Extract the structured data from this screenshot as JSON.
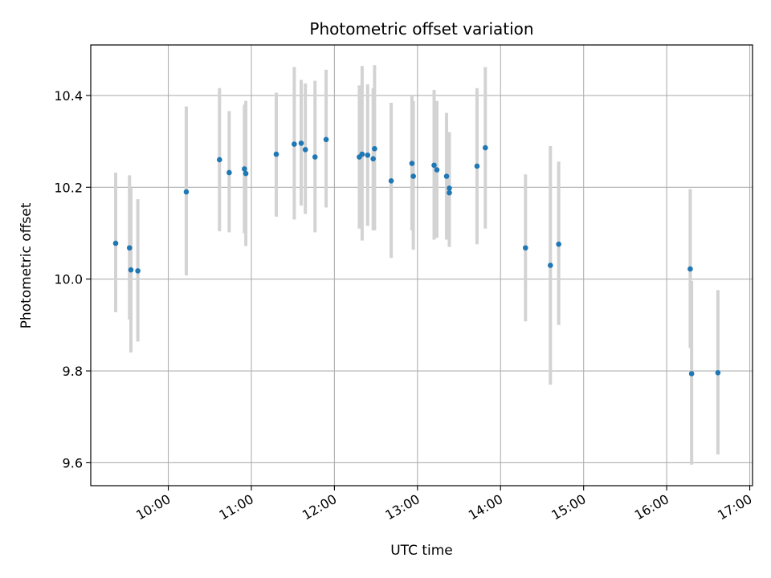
{
  "chart_data": {
    "type": "scatter",
    "title": "Photometric offset variation",
    "xlabel": "UTC time",
    "ylabel": "Photometric offset",
    "x_ticks": [
      "10:00",
      "11:00",
      "12:00",
      "13:00",
      "14:00",
      "15:00",
      "16:00",
      "17:00"
    ],
    "y_ticks": [
      "9.6",
      "9.8",
      "10.0",
      "10.2",
      "10.4"
    ],
    "xlim": [
      "09:04",
      "17:02"
    ],
    "ylim": [
      9.55,
      10.51
    ],
    "grid": true,
    "colors": {
      "point": "#1f77b4",
      "errorbar": "#d3d3d3",
      "grid": "#b0b0b0"
    },
    "points": [
      {
        "x": "09:22",
        "y": 10.078,
        "err_low": 9.928,
        "err_high": 10.232
      },
      {
        "x": "09:32",
        "y": 10.068,
        "err_low": 9.912,
        "err_high": 10.226
      },
      {
        "x": "09:33",
        "y": 10.02,
        "err_low": 9.84,
        "err_high": 10.198
      },
      {
        "x": "09:38",
        "y": 10.018,
        "err_low": 9.864,
        "err_high": 10.174
      },
      {
        "x": "10:13",
        "y": 10.19,
        "err_low": 10.008,
        "err_high": 10.376
      },
      {
        "x": "10:37",
        "y": 10.26,
        "err_low": 10.104,
        "err_high": 10.416
      },
      {
        "x": "10:44",
        "y": 10.232,
        "err_low": 10.102,
        "err_high": 10.366
      },
      {
        "x": "10:55",
        "y": 10.24,
        "err_low": 10.1,
        "err_high": 10.38
      },
      {
        "x": "10:56",
        "y": 10.23,
        "err_low": 10.072,
        "err_high": 10.388
      },
      {
        "x": "11:18",
        "y": 10.272,
        "err_low": 10.136,
        "err_high": 10.406
      },
      {
        "x": "11:31",
        "y": 10.294,
        "err_low": 10.13,
        "err_high": 10.462
      },
      {
        "x": "11:36",
        "y": 10.296,
        "err_low": 10.16,
        "err_high": 10.434
      },
      {
        "x": "11:39",
        "y": 10.282,
        "err_low": 10.142,
        "err_high": 10.426
      },
      {
        "x": "11:46",
        "y": 10.266,
        "err_low": 10.102,
        "err_high": 10.432
      },
      {
        "x": "11:54",
        "y": 10.304,
        "err_low": 10.156,
        "err_high": 10.456
      },
      {
        "x": "12:18",
        "y": 10.266,
        "err_low": 10.11,
        "err_high": 10.422
      },
      {
        "x": "12:20",
        "y": 10.272,
        "err_low": 10.084,
        "err_high": 10.464
      },
      {
        "x": "12:24",
        "y": 10.27,
        "err_low": 10.116,
        "err_high": 10.424
      },
      {
        "x": "12:28",
        "y": 10.262,
        "err_low": 10.106,
        "err_high": 10.416
      },
      {
        "x": "12:29",
        "y": 10.284,
        "err_low": 10.106,
        "err_high": 10.466
      },
      {
        "x": "12:41",
        "y": 10.214,
        "err_low": 10.046,
        "err_high": 10.384
      },
      {
        "x": "12:56",
        "y": 10.252,
        "err_low": 10.106,
        "err_high": 10.398
      },
      {
        "x": "12:57",
        "y": 10.224,
        "err_low": 10.064,
        "err_high": 10.388
      },
      {
        "x": "13:12",
        "y": 10.248,
        "err_low": 10.086,
        "err_high": 10.412
      },
      {
        "x": "13:14",
        "y": 10.238,
        "err_low": 10.09,
        "err_high": 10.388
      },
      {
        "x": "13:21",
        "y": 10.224,
        "err_low": 10.086,
        "err_high": 10.362
      },
      {
        "x": "13:23",
        "y": 10.198,
        "err_low": 10.08,
        "err_high": 10.32
      },
      {
        "x": "13:23",
        "y": 10.188,
        "err_low": 10.07,
        "err_high": 10.306
      },
      {
        "x": "13:43",
        "y": 10.246,
        "err_low": 10.076,
        "err_high": 10.416
      },
      {
        "x": "13:49",
        "y": 10.286,
        "err_low": 10.11,
        "err_high": 10.462
      },
      {
        "x": "14:18",
        "y": 10.068,
        "err_low": 9.908,
        "err_high": 10.228
      },
      {
        "x": "14:36",
        "y": 10.03,
        "err_low": 9.77,
        "err_high": 10.29
      },
      {
        "x": "14:42",
        "y": 10.076,
        "err_low": 9.9,
        "err_high": 10.256
      },
      {
        "x": "16:17",
        "y": 10.022,
        "err_low": 9.85,
        "err_high": 10.196
      },
      {
        "x": "16:18",
        "y": 9.794,
        "err_low": 9.596,
        "err_high": 9.996
      },
      {
        "x": "16:37",
        "y": 9.796,
        "err_low": 9.618,
        "err_high": 9.976
      }
    ]
  }
}
